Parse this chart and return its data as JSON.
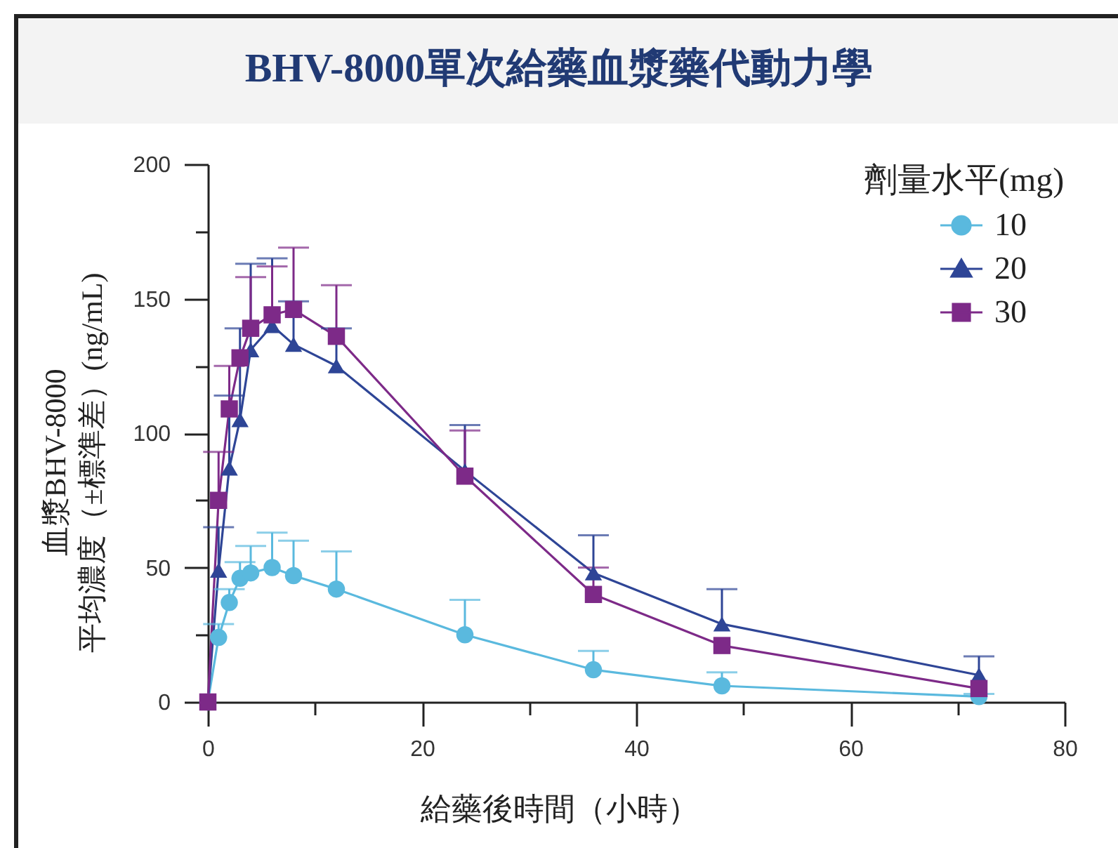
{
  "chart_data": {
    "type": "line",
    "title": "BHV-8000單次給藥血漿藥代動力學",
    "xlabel": "給藥後時間（小時）",
    "ylabel": "血漿BHV-8000\n平均濃度（±標準差）(ng/mL)",
    "legend_title": "劑量水平(mg)",
    "legend": "top right",
    "x": [
      0,
      1,
      2,
      3,
      4,
      6,
      8,
      12,
      24,
      36,
      48,
      72
    ],
    "series": [
      {
        "name": "10",
        "color": "#5ab9de",
        "marker": "circle",
        "values": [
          0,
          24,
          37,
          46,
          48,
          50,
          47,
          42,
          25,
          12,
          6,
          2
        ],
        "errors": [
          null,
          [
            24,
            29
          ],
          [
            37,
            42
          ],
          [
            46,
            52
          ],
          [
            48,
            58
          ],
          [
            50,
            63
          ],
          [
            47,
            60
          ],
          [
            42,
            56
          ],
          [
            25,
            38
          ],
          [
            12,
            19
          ],
          [
            6,
            11
          ],
          [
            2,
            3
          ]
        ]
      },
      {
        "name": "20",
        "color": "#2e4596",
        "marker": "triangle",
        "values": [
          0,
          49,
          87,
          105,
          131,
          140,
          133,
          125,
          86,
          48,
          29,
          10
        ],
        "errors": [
          null,
          [
            49,
            65
          ],
          [
            87,
            114
          ],
          [
            105,
            139
          ],
          [
            131,
            163
          ],
          [
            140,
            165
          ],
          [
            133,
            149
          ],
          [
            125,
            139
          ],
          [
            86,
            103
          ],
          [
            48,
            62
          ],
          [
            29,
            42
          ],
          [
            10,
            17
          ]
        ]
      },
      {
        "name": "30",
        "color": "#7d2a88",
        "marker": "square",
        "values": [
          0,
          75,
          109,
          128,
          139,
          144,
          146,
          136,
          84,
          40,
          21,
          5
        ],
        "errors": [
          null,
          [
            75,
            93
          ],
          [
            109,
            125
          ],
          null,
          [
            139,
            158
          ],
          [
            144,
            162
          ],
          [
            146,
            169
          ],
          [
            136,
            155
          ],
          [
            84,
            101
          ],
          [
            40,
            50
          ],
          null,
          null
        ]
      }
    ],
    "xlim": [
      0,
      80
    ],
    "xticks": [
      0,
      {
        "value": 10,
        "label": null
      },
      20,
      {
        "value": 30,
        "label": null
      },
      40,
      {
        "value": 50,
        "label": null
      },
      60,
      {
        "value": 70,
        "label": null
      },
      80
    ],
    "ylim": [
      0,
      200
    ],
    "yticks": [
      0,
      {
        "value": 25,
        "label": null
      },
      50,
      {
        "value": 75,
        "label": null
      },
      100,
      {
        "value": 125,
        "label": null
      },
      150,
      {
        "value": 175,
        "label": null
      },
      200
    ]
  }
}
